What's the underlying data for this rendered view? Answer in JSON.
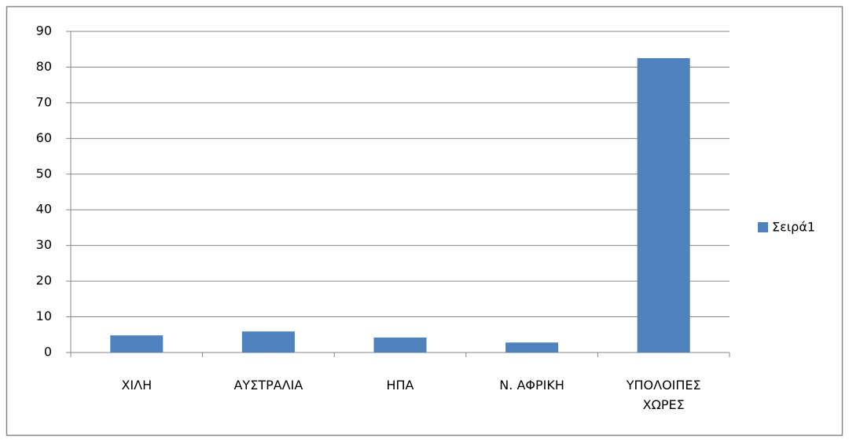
{
  "chart_data": {
    "type": "bar",
    "categories": [
      "ΧΙΛΗ",
      "ΑΥΣΤΡΑΛΙΑ",
      "ΗΠΑ",
      "Ν. ΑΦΡΙΚΗ",
      "ΥΠΟΛΟΙΠΕΣ ΧΩΡΕΣ"
    ],
    "series": [
      {
        "name": "Σειρά1",
        "color": "#4f81bd",
        "values": [
          4.8,
          5.9,
          4.2,
          2.8,
          82.5
        ]
      }
    ],
    "ylim": [
      0,
      90
    ],
    "yticks": [
      0,
      10,
      20,
      30,
      40,
      50,
      60,
      70,
      80,
      90
    ],
    "grid": true,
    "legend": "right"
  }
}
